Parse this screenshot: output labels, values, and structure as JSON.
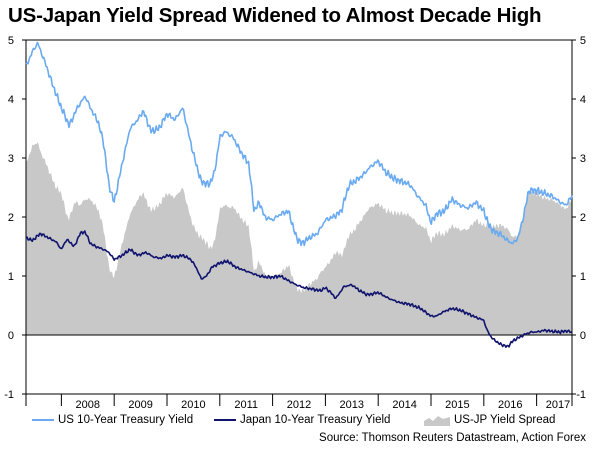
{
  "chart_data": {
    "type": "line",
    "title": "US-Japan Yield Spread Widened to Almost Decade High",
    "xlabel": "",
    "ylabel": "",
    "ylim": [
      -1,
      5
    ],
    "y_ticks": [
      -1,
      0,
      1,
      2,
      3,
      4,
      5
    ],
    "y_ticks_right": [
      -1,
      0,
      1,
      2,
      3,
      4,
      5
    ],
    "x_range": [
      2007.33,
      2017.67
    ],
    "x_tick_labels": [
      "2008",
      "2009",
      "2010",
      "2011",
      "2012",
      "2013",
      "2014",
      "2015",
      "2016",
      "2017"
    ],
    "x_tick_positions": [
      2008.0,
      2009.0,
      2010.0,
      2011.0,
      2012.0,
      2013.0,
      2014.0,
      2015.0,
      2016.0,
      2017.0
    ],
    "grid": false,
    "series": [
      {
        "name": "US 10-Year Treasury Yield",
        "kind": "line",
        "color": "#6aaaf0",
        "x": [
          2007.33,
          2007.45,
          2007.55,
          2007.7,
          2007.85,
          2008.0,
          2008.15,
          2008.3,
          2008.45,
          2008.55,
          2008.7,
          2008.8,
          2008.9,
          2009.0,
          2009.15,
          2009.3,
          2009.45,
          2009.55,
          2009.7,
          2009.85,
          2010.0,
          2010.15,
          2010.3,
          2010.45,
          2010.55,
          2010.65,
          2010.8,
          2010.9,
          2011.0,
          2011.1,
          2011.25,
          2011.4,
          2011.55,
          2011.65,
          2011.75,
          2011.85,
          2012.0,
          2012.15,
          2012.3,
          2012.45,
          2012.55,
          2012.7,
          2012.85,
          2013.0,
          2013.15,
          2013.3,
          2013.45,
          2013.55,
          2013.7,
          2013.85,
          2014.0,
          2014.15,
          2014.3,
          2014.45,
          2014.6,
          2014.75,
          2014.9,
          2015.0,
          2015.1,
          2015.25,
          2015.4,
          2015.55,
          2015.7,
          2015.85,
          2016.0,
          2016.1,
          2016.2,
          2016.3,
          2016.45,
          2016.55,
          2016.65,
          2016.75,
          2016.85,
          2017.0,
          2017.15,
          2017.3,
          2017.45,
          2017.55,
          2017.67
        ],
        "y": [
          4.55,
          4.8,
          4.95,
          4.6,
          4.2,
          3.85,
          3.55,
          3.85,
          4.05,
          3.85,
          3.6,
          3.25,
          2.55,
          2.25,
          2.9,
          3.5,
          3.65,
          3.8,
          3.45,
          3.5,
          3.75,
          3.65,
          3.85,
          3.25,
          2.9,
          2.6,
          2.55,
          2.75,
          3.35,
          3.45,
          3.35,
          3.1,
          2.9,
          2.1,
          2.25,
          2.0,
          1.95,
          2.05,
          2.1,
          1.65,
          1.55,
          1.65,
          1.72,
          1.95,
          2.0,
          2.1,
          2.55,
          2.6,
          2.7,
          2.85,
          2.95,
          2.75,
          2.65,
          2.6,
          2.55,
          2.35,
          2.2,
          1.9,
          2.05,
          2.1,
          2.3,
          2.2,
          2.15,
          2.25,
          2.1,
          1.85,
          1.75,
          1.72,
          1.6,
          1.55,
          1.65,
          2.0,
          2.45,
          2.45,
          2.4,
          2.35,
          2.25,
          2.2,
          2.35
        ]
      },
      {
        "name": "Japan 10-Year Treasury Yield",
        "kind": "line",
        "color": "#10146e",
        "x": [
          2007.33,
          2007.45,
          2007.6,
          2007.75,
          2007.9,
          2008.0,
          2008.1,
          2008.25,
          2008.35,
          2008.45,
          2008.55,
          2008.65,
          2008.8,
          2008.9,
          2009.0,
          2009.15,
          2009.3,
          2009.45,
          2009.6,
          2009.75,
          2009.9,
          2010.0,
          2010.15,
          2010.3,
          2010.45,
          2010.55,
          2010.65,
          2010.75,
          2010.85,
          2011.0,
          2011.15,
          2011.3,
          2011.45,
          2011.6,
          2011.75,
          2011.9,
          2012.0,
          2012.15,
          2012.3,
          2012.45,
          2012.6,
          2012.75,
          2012.9,
          2013.0,
          2013.1,
          2013.2,
          2013.35,
          2013.5,
          2013.65,
          2013.8,
          2014.0,
          2014.2,
          2014.4,
          2014.6,
          2014.8,
          2015.0,
          2015.1,
          2015.25,
          2015.4,
          2015.55,
          2015.7,
          2015.85,
          2016.0,
          2016.05,
          2016.15,
          2016.3,
          2016.45,
          2016.55,
          2016.65,
          2016.8,
          2016.9,
          2017.0,
          2017.15,
          2017.3,
          2017.45,
          2017.55,
          2017.67
        ],
        "y": [
          1.65,
          1.6,
          1.72,
          1.65,
          1.58,
          1.45,
          1.62,
          1.5,
          1.72,
          1.75,
          1.55,
          1.5,
          1.45,
          1.4,
          1.28,
          1.35,
          1.45,
          1.35,
          1.4,
          1.32,
          1.3,
          1.35,
          1.32,
          1.35,
          1.28,
          1.15,
          0.95,
          1.0,
          1.15,
          1.22,
          1.25,
          1.15,
          1.1,
          1.05,
          1.0,
          0.98,
          0.98,
          1.0,
          0.92,
          0.85,
          0.8,
          0.78,
          0.75,
          0.8,
          0.72,
          0.62,
          0.82,
          0.85,
          0.75,
          0.68,
          0.72,
          0.62,
          0.55,
          0.52,
          0.45,
          0.32,
          0.32,
          0.4,
          0.45,
          0.42,
          0.36,
          0.3,
          0.25,
          0.1,
          -0.05,
          -0.15,
          -0.2,
          -0.1,
          -0.05,
          0.02,
          0.05,
          0.05,
          0.08,
          0.06,
          0.05,
          0.07,
          0.05
        ]
      },
      {
        "name": "US-JP Yield Spread",
        "kind": "area",
        "color": "#c8c8c8"
      }
    ],
    "legend": [
      {
        "label": "US 10-Year Treasury Yield",
        "kind": "line",
        "color": "#6aaaf0"
      },
      {
        "label": "Japan 10-Year Treasury Yield",
        "kind": "line",
        "color": "#10146e"
      },
      {
        "label": "US-JP Yield Spread",
        "kind": "area",
        "color": "#c8c8c8"
      }
    ],
    "source": "Source: Thomson Reuters Datastream, Action Forex"
  }
}
